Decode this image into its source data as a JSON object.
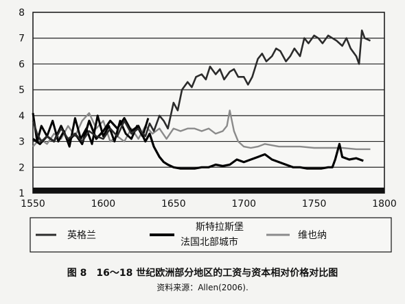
{
  "chart_data": {
    "type": "line",
    "title": "图 8　16～18 世纪欧洲部分地区的工资与资本相对价格对比图",
    "source": "资料来源：Allen(2006).",
    "xlabel": "",
    "ylabel": "",
    "xlim": [
      1550,
      1800
    ],
    "ylim": [
      1,
      8
    ],
    "x_ticks": [
      1550,
      1600,
      1650,
      1700,
      1750,
      1800
    ],
    "y_ticks": [
      1,
      2,
      3,
      4,
      5,
      6,
      7,
      8
    ],
    "grid": "horizontal",
    "legend_position": "bottom",
    "legend": [
      "英格兰",
      "斯特拉斯堡",
      "法国北部城市",
      "维也纳"
    ],
    "series": [
      {
        "name": "英格兰",
        "color": "#2b2b2b",
        "x": [
          1550,
          1553,
          1556,
          1560,
          1565,
          1570,
          1575,
          1580,
          1585,
          1590,
          1595,
          1600,
          1605,
          1610,
          1615,
          1620,
          1625,
          1630,
          1633,
          1636,
          1640,
          1643,
          1646,
          1650,
          1653,
          1656,
          1660,
          1663,
          1666,
          1670,
          1673,
          1676,
          1680,
          1683,
          1686,
          1690,
          1693,
          1696,
          1700,
          1703,
          1706,
          1710,
          1713,
          1716,
          1720,
          1723,
          1726,
          1730,
          1733,
          1736,
          1740,
          1743,
          1746,
          1750,
          1753,
          1756,
          1760,
          1763,
          1766,
          1770,
          1773,
          1776,
          1780,
          1782,
          1784,
          1786,
          1790
        ],
        "y": [
          3.8,
          3.3,
          3.0,
          3.2,
          3.0,
          3.5,
          3.1,
          3.3,
          3.0,
          3.4,
          3.2,
          3.1,
          3.5,
          3.2,
          3.8,
          3.3,
          3.5,
          3.2,
          3.7,
          3.4,
          4.0,
          3.8,
          3.5,
          4.5,
          4.2,
          5.0,
          5.3,
          5.1,
          5.5,
          5.6,
          5.4,
          5.9,
          5.6,
          5.8,
          5.4,
          5.7,
          5.8,
          5.5,
          5.5,
          5.2,
          5.5,
          6.2,
          6.4,
          6.1,
          6.3,
          6.6,
          6.5,
          6.1,
          6.3,
          6.6,
          6.3,
          7.0,
          6.8,
          7.1,
          7.0,
          6.8,
          7.1,
          7.0,
          6.9,
          6.7,
          7.0,
          6.6,
          6.3,
          6.0,
          7.3,
          7.0,
          6.9
        ]
      },
      {
        "name": "斯特拉斯堡",
        "color": "#000000",
        "x": [
          1550,
          1555,
          1560,
          1565,
          1570,
          1575,
          1580,
          1585,
          1590,
          1595,
          1600,
          1605,
          1610,
          1615,
          1620,
          1625,
          1630,
          1633,
          1636,
          1640,
          1643,
          1646,
          1650,
          1655,
          1660,
          1665,
          1670,
          1675,
          1680,
          1685,
          1690,
          1695,
          1700,
          1705,
          1710,
          1715,
          1720,
          1725,
          1730,
          1735,
          1740,
          1745,
          1750,
          1755,
          1760,
          1763,
          1765,
          1768,
          1770,
          1775,
          1780,
          1785
        ],
        "y": [
          3.1,
          2.9,
          3.2,
          3.0,
          3.6,
          3.0,
          3.3,
          2.9,
          3.8,
          3.1,
          3.4,
          3.8,
          3.5,
          3.9,
          3.4,
          3.6,
          3.0,
          3.3,
          2.8,
          2.4,
          2.2,
          2.1,
          2.0,
          1.95,
          1.95,
          1.95,
          2.0,
          2.0,
          2.1,
          2.05,
          2.1,
          2.3,
          2.2,
          2.3,
          2.4,
          2.5,
          2.3,
          2.2,
          2.1,
          2.0,
          2.0,
          1.95,
          1.95,
          1.95,
          2.0,
          2.0,
          2.3,
          2.9,
          2.4,
          2.3,
          2.35,
          2.25
        ]
      },
      {
        "name": "法国北部城市",
        "color": "#000000",
        "x": [
          1550,
          1553,
          1556,
          1560,
          1564,
          1568,
          1572,
          1576,
          1580,
          1584,
          1588,
          1592,
          1596,
          1600,
          1604,
          1608,
          1612,
          1616,
          1620,
          1624,
          1628,
          1632
        ],
        "y": [
          4.1,
          3.0,
          3.6,
          3.2,
          3.8,
          3.0,
          3.4,
          2.8,
          3.9,
          3.1,
          3.5,
          2.9,
          4.0,
          3.2,
          3.6,
          3.0,
          3.8,
          3.3,
          3.1,
          3.6,
          3.2,
          3.9
        ]
      },
      {
        "name": "维也纳",
        "color": "#8a8a8a",
        "x": [
          1550,
          1555,
          1560,
          1565,
          1570,
          1575,
          1580,
          1585,
          1590,
          1595,
          1600,
          1605,
          1610,
          1615,
          1620,
          1625,
          1630,
          1635,
          1640,
          1645,
          1650,
          1655,
          1660,
          1665,
          1670,
          1675,
          1680,
          1685,
          1688,
          1690,
          1693,
          1696,
          1700,
          1705,
          1710,
          1715,
          1720,
          1725,
          1730,
          1740,
          1750,
          1760,
          1770,
          1780,
          1790
        ],
        "y": [
          2.8,
          3.1,
          2.9,
          3.3,
          3.1,
          3.6,
          3.2,
          3.8,
          4.1,
          3.5,
          3.8,
          3.0,
          3.2,
          3.0,
          3.5,
          3.1,
          3.6,
          3.3,
          3.5,
          3.1,
          3.5,
          3.4,
          3.5,
          3.5,
          3.4,
          3.5,
          3.3,
          3.4,
          3.6,
          4.2,
          3.4,
          3.0,
          2.8,
          2.75,
          2.8,
          2.9,
          2.85,
          2.8,
          2.8,
          2.8,
          2.75,
          2.75,
          2.75,
          2.7,
          2.7
        ]
      }
    ]
  }
}
